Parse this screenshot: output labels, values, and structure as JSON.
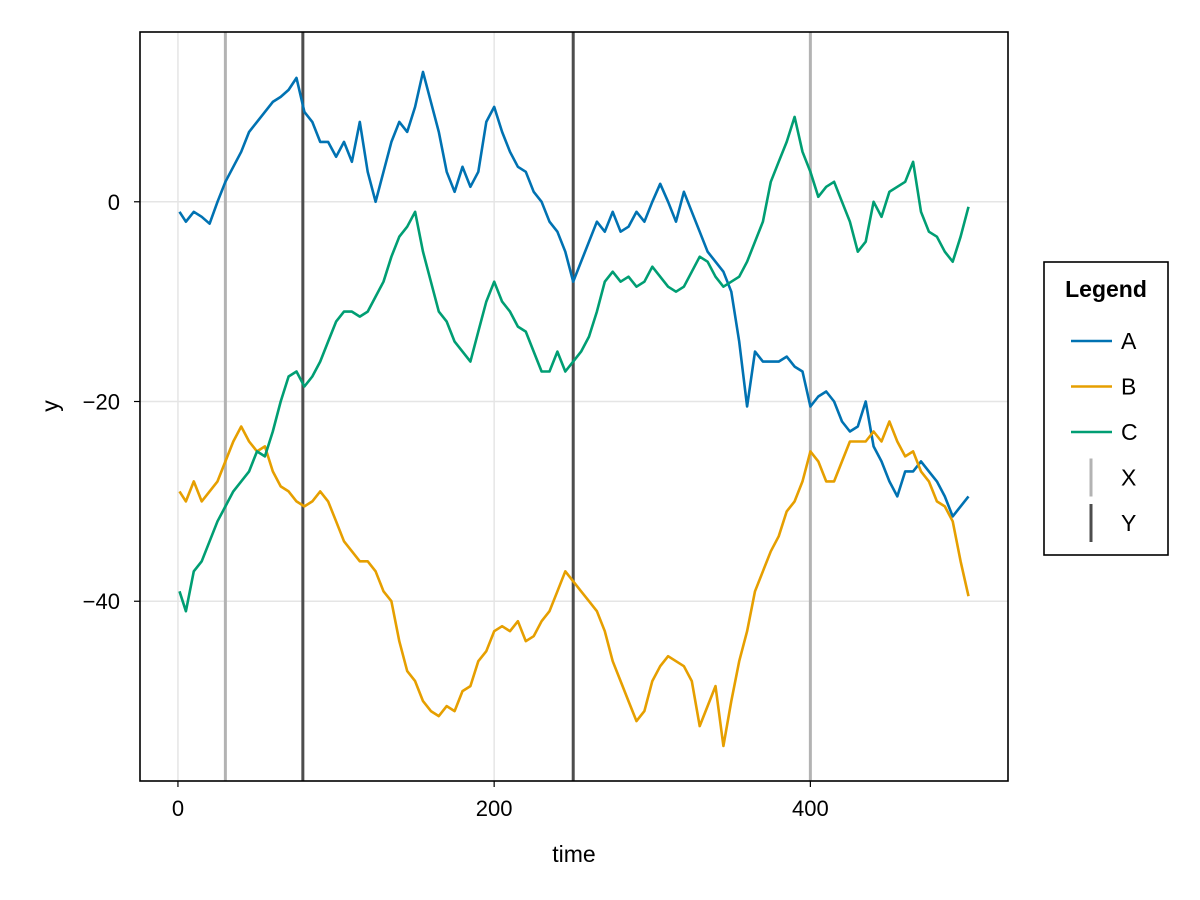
{
  "chart_data": {
    "type": "line",
    "xlabel": "time",
    "ylabel": "y",
    "xlim": [
      -24,
      525
    ],
    "ylim": [
      -58,
      17
    ],
    "x_ticks": [
      0,
      200,
      400
    ],
    "x_tick_labels": [
      "0",
      "200",
      "400"
    ],
    "y_ticks": [
      0,
      -20,
      -40
    ],
    "y_tick_labels": [
      "0",
      "−20",
      "−40"
    ],
    "grid": true,
    "legend": {
      "title": "Legend",
      "placement": "right",
      "entries": [
        {
          "label": "A",
          "kind": "line",
          "color": "#0072b2"
        },
        {
          "label": "B",
          "kind": "line",
          "color": "#e69f00"
        },
        {
          "label": "C",
          "kind": "line",
          "color": "#009e73"
        },
        {
          "label": "X",
          "kind": "vline",
          "color": "#b3b3b3"
        },
        {
          "label": "Y",
          "kind": "vline",
          "color": "#4d4d4d"
        }
      ]
    },
    "series": [
      {
        "name": "A",
        "color": "#0072b2",
        "points": [
          [
            1,
            -1
          ],
          [
            5,
            -2
          ],
          [
            10,
            -1
          ],
          [
            15,
            -1.5
          ],
          [
            20,
            -2.2
          ],
          [
            25,
            0
          ],
          [
            30,
            2
          ],
          [
            35,
            3.5
          ],
          [
            40,
            5
          ],
          [
            45,
            7
          ],
          [
            50,
            8
          ],
          [
            55,
            9
          ],
          [
            60,
            10
          ],
          [
            65,
            10.5
          ],
          [
            70,
            11.2
          ],
          [
            75,
            12.4
          ],
          [
            80,
            9
          ],
          [
            85,
            8
          ],
          [
            90,
            6
          ],
          [
            95,
            6
          ],
          [
            100,
            4.5
          ],
          [
            105,
            6
          ],
          [
            110,
            4
          ],
          [
            115,
            8
          ],
          [
            120,
            3
          ],
          [
            125,
            0
          ],
          [
            130,
            3
          ],
          [
            135,
            6
          ],
          [
            140,
            8
          ],
          [
            145,
            7
          ],
          [
            150,
            9.5
          ],
          [
            155,
            13
          ],
          [
            160,
            10
          ],
          [
            165,
            7
          ],
          [
            170,
            3
          ],
          [
            175,
            1
          ],
          [
            180,
            3.5
          ],
          [
            185,
            1.5
          ],
          [
            190,
            3
          ],
          [
            195,
            8
          ],
          [
            200,
            9.5
          ],
          [
            205,
            7
          ],
          [
            210,
            5
          ],
          [
            215,
            3.5
          ],
          [
            220,
            3
          ],
          [
            225,
            1
          ],
          [
            230,
            0
          ],
          [
            235,
            -2
          ],
          [
            240,
            -3
          ],
          [
            245,
            -5
          ],
          [
            250,
            -8
          ],
          [
            255,
            -6
          ],
          [
            260,
            -4
          ],
          [
            265,
            -2
          ],
          [
            270,
            -3
          ],
          [
            275,
            -1
          ],
          [
            280,
            -3
          ],
          [
            285,
            -2.5
          ],
          [
            290,
            -1
          ],
          [
            295,
            -2
          ],
          [
            300,
            0
          ],
          [
            305,
            1.8
          ],
          [
            310,
            0
          ],
          [
            315,
            -2
          ],
          [
            320,
            1
          ],
          [
            325,
            -1
          ],
          [
            330,
            -3
          ],
          [
            335,
            -5
          ],
          [
            340,
            -6
          ],
          [
            345,
            -7
          ],
          [
            350,
            -9
          ],
          [
            355,
            -14
          ],
          [
            360,
            -20.5
          ],
          [
            365,
            -15
          ],
          [
            370,
            -16
          ],
          [
            375,
            -16
          ],
          [
            380,
            -16
          ],
          [
            385,
            -15.5
          ],
          [
            390,
            -16.5
          ],
          [
            395,
            -17
          ],
          [
            400,
            -20.5
          ],
          [
            405,
            -19.5
          ],
          [
            410,
            -19
          ],
          [
            415,
            -20
          ],
          [
            420,
            -22
          ],
          [
            425,
            -23
          ],
          [
            430,
            -22.5
          ],
          [
            435,
            -20
          ],
          [
            440,
            -24.5
          ],
          [
            445,
            -26
          ],
          [
            450,
            -28
          ],
          [
            455,
            -29.5
          ],
          [
            460,
            -27
          ],
          [
            465,
            -27
          ],
          [
            470,
            -26
          ],
          [
            475,
            -27
          ],
          [
            480,
            -28
          ],
          [
            485,
            -29.5
          ],
          [
            490,
            -31.5
          ],
          [
            495,
            -30.5
          ],
          [
            500,
            -29.5
          ]
        ]
      },
      {
        "name": "B",
        "color": "#e69f00",
        "points": [
          [
            1,
            -29
          ],
          [
            5,
            -30
          ],
          [
            10,
            -28
          ],
          [
            15,
            -30
          ],
          [
            20,
            -29
          ],
          [
            25,
            -28
          ],
          [
            30,
            -26
          ],
          [
            35,
            -24
          ],
          [
            40,
            -22.5
          ],
          [
            45,
            -24
          ],
          [
            50,
            -25
          ],
          [
            55,
            -24.5
          ],
          [
            60,
            -27
          ],
          [
            65,
            -28.5
          ],
          [
            70,
            -29
          ],
          [
            75,
            -30
          ],
          [
            80,
            -30.5
          ],
          [
            85,
            -30
          ],
          [
            90,
            -29
          ],
          [
            95,
            -30
          ],
          [
            100,
            -32
          ],
          [
            105,
            -34
          ],
          [
            110,
            -35
          ],
          [
            115,
            -36
          ],
          [
            120,
            -36
          ],
          [
            125,
            -37
          ],
          [
            130,
            -39
          ],
          [
            135,
            -40
          ],
          [
            140,
            -44
          ],
          [
            145,
            -47
          ],
          [
            150,
            -48
          ],
          [
            155,
            -50
          ],
          [
            160,
            -51
          ],
          [
            165,
            -51.5
          ],
          [
            170,
            -50.5
          ],
          [
            175,
            -51
          ],
          [
            180,
            -49
          ],
          [
            185,
            -48.5
          ],
          [
            190,
            -46
          ],
          [
            195,
            -45
          ],
          [
            200,
            -43
          ],
          [
            205,
            -42.5
          ],
          [
            210,
            -43
          ],
          [
            215,
            -42
          ],
          [
            220,
            -44
          ],
          [
            225,
            -43.5
          ],
          [
            230,
            -42
          ],
          [
            235,
            -41
          ],
          [
            240,
            -39
          ],
          [
            245,
            -37
          ],
          [
            250,
            -38
          ],
          [
            255,
            -39
          ],
          [
            260,
            -40
          ],
          [
            265,
            -41
          ],
          [
            270,
            -43
          ],
          [
            275,
            -46
          ],
          [
            280,
            -48
          ],
          [
            285,
            -50
          ],
          [
            290,
            -52
          ],
          [
            295,
            -51
          ],
          [
            300,
            -48
          ],
          [
            305,
            -46.5
          ],
          [
            310,
            -45.5
          ],
          [
            315,
            -46
          ],
          [
            320,
            -46.5
          ],
          [
            325,
            -48
          ],
          [
            330,
            -52.5
          ],
          [
            335,
            -50.5
          ],
          [
            340,
            -48.5
          ],
          [
            345,
            -54.5
          ],
          [
            350,
            -50
          ],
          [
            355,
            -46
          ],
          [
            360,
            -43
          ],
          [
            365,
            -39
          ],
          [
            370,
            -37
          ],
          [
            375,
            -35
          ],
          [
            380,
            -33.5
          ],
          [
            385,
            -31
          ],
          [
            390,
            -30
          ],
          [
            395,
            -28
          ],
          [
            400,
            -25
          ],
          [
            405,
            -26
          ],
          [
            410,
            -28
          ],
          [
            415,
            -28
          ],
          [
            420,
            -26
          ],
          [
            425,
            -24
          ],
          [
            430,
            -24
          ],
          [
            435,
            -24
          ],
          [
            440,
            -23
          ],
          [
            445,
            -24
          ],
          [
            450,
            -22
          ],
          [
            455,
            -24
          ],
          [
            460,
            -25.5
          ],
          [
            465,
            -25
          ],
          [
            470,
            -27
          ],
          [
            475,
            -28
          ],
          [
            480,
            -30
          ],
          [
            485,
            -30.5
          ],
          [
            490,
            -32
          ],
          [
            495,
            -36
          ],
          [
            500,
            -39.5
          ]
        ]
      },
      {
        "name": "C",
        "color": "#009e73",
        "points": [
          [
            1,
            -39
          ],
          [
            5,
            -41
          ],
          [
            10,
            -37
          ],
          [
            15,
            -36
          ],
          [
            20,
            -34
          ],
          [
            25,
            -32
          ],
          [
            30,
            -30.5
          ],
          [
            35,
            -29
          ],
          [
            40,
            -28
          ],
          [
            45,
            -27
          ],
          [
            50,
            -25
          ],
          [
            55,
            -25.5
          ],
          [
            60,
            -23
          ],
          [
            65,
            -20
          ],
          [
            70,
            -17.5
          ],
          [
            75,
            -17
          ],
          [
            80,
            -18.5
          ],
          [
            85,
            -17.5
          ],
          [
            90,
            -16
          ],
          [
            95,
            -14
          ],
          [
            100,
            -12
          ],
          [
            105,
            -11
          ],
          [
            110,
            -11
          ],
          [
            115,
            -11.5
          ],
          [
            120,
            -11
          ],
          [
            125,
            -9.5
          ],
          [
            130,
            -8
          ],
          [
            135,
            -5.5
          ],
          [
            140,
            -3.5
          ],
          [
            145,
            -2.5
          ],
          [
            150,
            -1
          ],
          [
            155,
            -5
          ],
          [
            160,
            -8
          ],
          [
            165,
            -11
          ],
          [
            170,
            -12
          ],
          [
            175,
            -14
          ],
          [
            180,
            -15
          ],
          [
            185,
            -16
          ],
          [
            190,
            -13
          ],
          [
            195,
            -10
          ],
          [
            200,
            -8
          ],
          [
            205,
            -10
          ],
          [
            210,
            -11
          ],
          [
            215,
            -12.5
          ],
          [
            220,
            -13
          ],
          [
            225,
            -15
          ],
          [
            230,
            -17
          ],
          [
            235,
            -17
          ],
          [
            240,
            -15
          ],
          [
            245,
            -17
          ],
          [
            250,
            -16
          ],
          [
            255,
            -15
          ],
          [
            260,
            -13.5
          ],
          [
            265,
            -11
          ],
          [
            270,
            -8
          ],
          [
            275,
            -7
          ],
          [
            280,
            -8
          ],
          [
            285,
            -7.5
          ],
          [
            290,
            -8.5
          ],
          [
            295,
            -8
          ],
          [
            300,
            -6.5
          ],
          [
            305,
            -7.5
          ],
          [
            310,
            -8.5
          ],
          [
            315,
            -9
          ],
          [
            320,
            -8.5
          ],
          [
            325,
            -7
          ],
          [
            330,
            -5.5
          ],
          [
            335,
            -6
          ],
          [
            340,
            -7.5
          ],
          [
            345,
            -8.5
          ],
          [
            350,
            -8
          ],
          [
            355,
            -7.5
          ],
          [
            360,
            -6
          ],
          [
            365,
            -4
          ],
          [
            370,
            -2
          ],
          [
            375,
            2
          ],
          [
            380,
            4
          ],
          [
            385,
            6
          ],
          [
            390,
            8.5
          ],
          [
            395,
            5
          ],
          [
            400,
            3
          ],
          [
            405,
            0.5
          ],
          [
            410,
            1.5
          ],
          [
            415,
            2
          ],
          [
            420,
            0
          ],
          [
            425,
            -2
          ],
          [
            430,
            -5
          ],
          [
            435,
            -4
          ],
          [
            440,
            0
          ],
          [
            445,
            -1.5
          ],
          [
            450,
            1
          ],
          [
            455,
            1.5
          ],
          [
            460,
            2
          ],
          [
            465,
            4
          ],
          [
            470,
            -1
          ],
          [
            475,
            -3
          ],
          [
            480,
            -3.5
          ],
          [
            485,
            -5
          ],
          [
            490,
            -6
          ],
          [
            495,
            -3.5
          ],
          [
            500,
            -0.5
          ]
        ]
      }
    ],
    "vlines": [
      {
        "name": "X",
        "x": 30,
        "color": "#b3b3b3"
      },
      {
        "name": "X",
        "x": 400,
        "color": "#b3b3b3"
      },
      {
        "name": "Y",
        "x": 79,
        "color": "#4d4d4d"
      },
      {
        "name": "Y",
        "x": 250,
        "color": "#4d4d4d"
      }
    ]
  }
}
